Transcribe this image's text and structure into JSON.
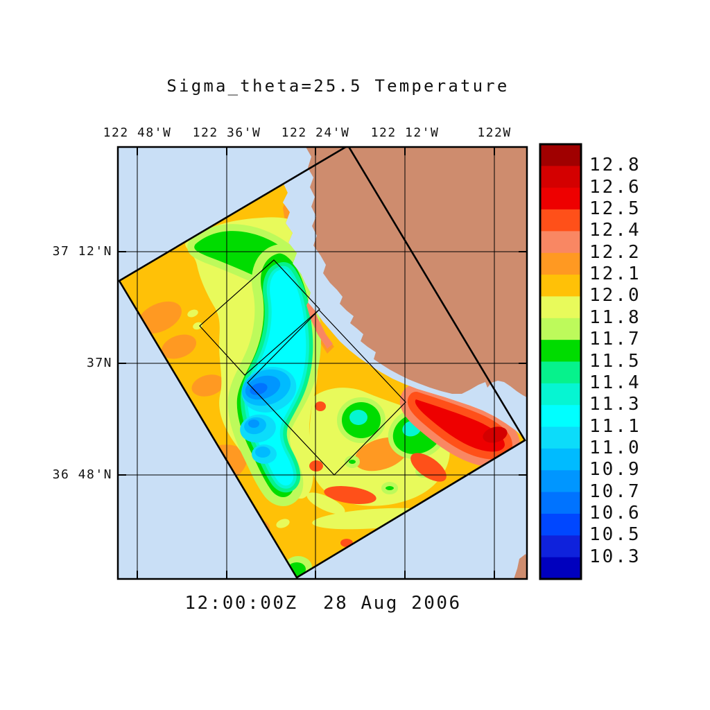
{
  "title": "Sigma_theta=25.5 Temperature",
  "footer_timestamp": "12:00:00Z  28 Aug 2006",
  "axes": {
    "top_tick_labels": [
      "122 48'W",
      "122 36'W",
      "122 24'W",
      "122 12'W",
      "122W"
    ],
    "left_tick_labels": [
      "37 12'N",
      "37N",
      "36 48'N"
    ]
  },
  "colorbar": {
    "boundary_labels_top_to_bottom": [
      "12.8",
      "12.6",
      "12.5",
      "12.4",
      "12.2",
      "12.1",
      "12.0",
      "11.8",
      "11.7",
      "11.5",
      "11.4",
      "11.3",
      "11.1",
      "11.0",
      "10.9",
      "10.7",
      "10.6",
      "10.5",
      "10.3"
    ],
    "segment_colors_top_to_bottom": [
      "#A00000",
      "#D40000",
      "#EE0000",
      "#FF5019",
      "#F98763",
      "#FF9922",
      "#FFC107",
      "#E8FA5B",
      "#BDFA5B",
      "#00DC00",
      "#06F28C",
      "#06F5D2",
      "#00FFFF",
      "#0CDCFA",
      "#00BBFF",
      "#0096FF",
      "#0073FF",
      "#0047FF",
      "#0F22DC",
      "#0000BE"
    ]
  },
  "map": {
    "ocean_color": "#C9DFF6",
    "land_color": "#CE8C6E",
    "field_base_color": "#FFC107",
    "outline_color": "#000000"
  },
  "chart_data": {
    "type": "heatmap",
    "title": "Sigma_theta=25.5 Temperature",
    "timestamp": "12:00:00Z  28 Aug 2006",
    "variable": "Temperature on the sigma_theta=25.5 isopycnal surface",
    "x_ticks": [
      "122 48'W",
      "122 36'W",
      "122 24'W",
      "122 12'W",
      "122W"
    ],
    "y_ticks": [
      "37 12'N",
      "37N",
      "36 48'N"
    ],
    "grid": true,
    "legend_position": "right colorbar",
    "colorbar_levels_ascending": [
      10.3,
      10.5,
      10.6,
      10.7,
      10.9,
      11.0,
      11.1,
      11.3,
      11.4,
      11.5,
      11.7,
      11.8,
      12.0,
      12.1,
      12.2,
      12.4,
      12.5,
      12.6,
      12.8
    ],
    "colorbar_colors_low_to_high": [
      "#0000BE",
      "#0F22DC",
      "#0047FF",
      "#0073FF",
      "#0096FF",
      "#00BBFF",
      "#0CDCFA",
      "#00FFFF",
      "#06F5D2",
      "#06F28C",
      "#00DC00",
      "#BDFA5B",
      "#E8FA5B",
      "#FFC107",
      "#FF9922",
      "#F98763",
      "#FF5019",
      "#EE0000",
      "#D40000",
      "#A00000"
    ],
    "map_features": {
      "region": "central California coast near Monterey Bay",
      "model_domain": "rotated quadrilateral filled with temperature field, outlined in black",
      "nested_domains": 2,
      "background": "light-blue ocean with tan land in the upper right and a small land patch at lower right",
      "notable_structures": [
        "background field mostly 12.0-12.2 (orange/amber)",
        "cold S-shaped filament (11.8 down to ~10.7, yellow-green-cyan-blue) through the domain center",
        "coldest blue core ~10.7-10.9 near 37N",
        "warm red plume ~12.4-12.8 hugging the coast at the right (Monterey Bay)",
        "mesoscale eddy spiral of yellow/green/red arcs in the lower center",
        "green band ~11.5-11.7 along the northern part of the domain"
      ]
    }
  }
}
